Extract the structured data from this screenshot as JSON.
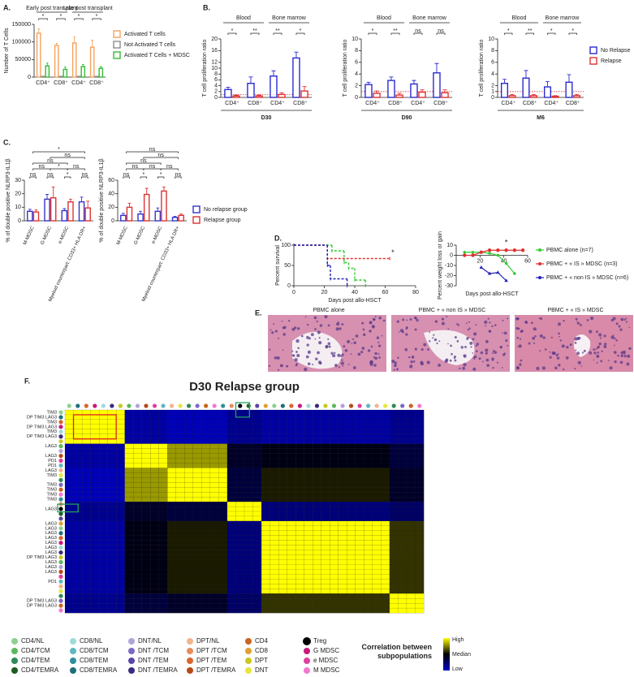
{
  "panel_labels": [
    "A.",
    "B.",
    "C.",
    "D.",
    "E.",
    "F."
  ],
  "histology": {
    "titles": [
      "PBMC alone",
      "PBMC + « non IS » MDSC",
      "PBMC + « IS » MDSC"
    ]
  },
  "chart_data": [
    {
      "type": "bar",
      "ylabel": "Number of T Cells",
      "groups": [
        "Early post transplant",
        "Late post transplant"
      ],
      "categories": [
        "CD4⁺",
        "CD8⁺",
        "CD4⁺",
        "CD8⁺"
      ],
      "series": [
        {
          "name": "Activated T cells",
          "color": "#f5a35c",
          "values": [
            125000,
            90000,
            97000,
            85000
          ],
          "errors": [
            12000,
            6000,
            18000,
            20000
          ]
        },
        {
          "name": "Not Activated T cells",
          "color": "#8c8c8c",
          "values": [
            2000,
            2000,
            2000,
            2000
          ],
          "errors": [
            500,
            500,
            500,
            500
          ]
        },
        {
          "name": "Activated T Cells + MDSC",
          "color": "#33bb33",
          "values": [
            32000,
            22000,
            30000,
            25000
          ],
          "errors": [
            8000,
            7000,
            6000,
            5000
          ]
        }
      ],
      "ylim": [
        0,
        150000
      ],
      "yticks": [
        0,
        50000,
        100000,
        150000
      ],
      "significance": [
        "*",
        "*",
        "*",
        "*"
      ],
      "legend": "right"
    },
    {
      "type": "bar",
      "ylabel": "T cell proliferation ratio",
      "xlabel": "D30",
      "groups": [
        "Blood",
        "Bone marrow"
      ],
      "categories": [
        "CD4⁺",
        "CD8⁺",
        "CD4⁺",
        "CD8⁺"
      ],
      "series": [
        {
          "color": "#2b2bd0",
          "values": [
            2.7,
            4.8,
            7.3,
            13.5
          ],
          "errors": [
            0.8,
            2.2,
            1.8,
            2
          ]
        },
        {
          "color": "#e03030",
          "values": [
            0.5,
            0.5,
            1.0,
            2.2
          ],
          "errors": [
            0.3,
            0.3,
            0.6,
            1.5
          ]
        }
      ],
      "ylim": [
        0,
        20
      ],
      "yticks": [
        0,
        2,
        4,
        6,
        8,
        10,
        12,
        16,
        20
      ],
      "hline": 1,
      "significance": [
        "*",
        "**",
        "**",
        "*"
      ]
    },
    {
      "type": "bar",
      "ylabel": "T cell proliferation ratio",
      "xlabel": "D90",
      "groups": [
        "Blood",
        "Bone marrow"
      ],
      "categories": [
        "CD4⁺",
        "CD8⁺",
        "CD4⁺",
        "CD8⁺"
      ],
      "series": [
        {
          "color": "#2b2bd0",
          "values": [
            2.2,
            2.9,
            2.3,
            4.2
          ],
          "errors": [
            0.4,
            0.6,
            0.6,
            1.6
          ]
        },
        {
          "color": "#e03030",
          "values": [
            0.7,
            0.4,
            0.9,
            0.8
          ],
          "errors": [
            0.4,
            0.3,
            0.4,
            0.5
          ]
        }
      ],
      "ylim": [
        0,
        10
      ],
      "yticks": [
        0,
        2,
        4,
        6,
        8,
        10
      ],
      "hline": 1,
      "significance": [
        "*",
        "**",
        "ns",
        "ns"
      ]
    },
    {
      "type": "bar",
      "ylabel": "T cell proliferation ratio",
      "xlabel": "M6",
      "groups": [
        "Blood",
        "Bone marrow"
      ],
      "categories": [
        "CD4⁺",
        "CD8⁺",
        "CD4⁺",
        "CD8⁺"
      ],
      "series": [
        {
          "name": "No Relapse",
          "color": "#2b2bd0",
          "values": [
            2.4,
            3.3,
            1.8,
            2.6
          ],
          "errors": [
            0.7,
            1.3,
            0.9,
            1.3
          ]
        },
        {
          "name": "Relapse",
          "color": "#e03030",
          "values": [
            0.3,
            0.3,
            0.2,
            0.3
          ],
          "errors": [
            0.2,
            0.2,
            0.1,
            0.2
          ]
        }
      ],
      "ylim": [
        0,
        10
      ],
      "yticks": [
        0,
        1,
        2,
        4,
        6,
        8,
        10
      ],
      "hline": 1,
      "significance": [
        "*",
        "**",
        "*",
        "*"
      ],
      "legend": "right"
    },
    {
      "type": "bar",
      "ylabel": "% of double positive NLRP3-IL1β",
      "categories": [
        "M-MDSC",
        "G-MDSC",
        "e-MDSC",
        "Myeloid counterpart: CD33+ HLA DR+"
      ],
      "series": [
        {
          "color": "#3333cc",
          "values": [
            7,
            16,
            7.5,
            14
          ],
          "errors": [
            1.5,
            3.5,
            1.5,
            3.5
          ]
        },
        {
          "color": "#dd3333",
          "values": [
            6.5,
            17,
            14,
            9.5
          ],
          "errors": [
            1.5,
            8,
            2,
            5
          ]
        }
      ],
      "ylim": [
        0,
        30
      ],
      "yticks": [
        0,
        10,
        20,
        30
      ],
      "significance": [
        "ns",
        "ns",
        "*",
        "ns"
      ],
      "brackets": [
        "*",
        "ns",
        "ns",
        "ns",
        "*",
        "ns"
      ]
    },
    {
      "type": "bar",
      "ylabel": "% of double positive NLRP3-IL1β",
      "categories": [
        "M-MDSC",
        "G-MDSC",
        "e-MDSC",
        "Myeloid counterpart: CD33+ HLA DR+"
      ],
      "series": [
        {
          "name": "No relapse group",
          "color": "#3333cc",
          "values": [
            8,
            10,
            14,
            5
          ],
          "errors": [
            3,
            4,
            5,
            1.5
          ]
        },
        {
          "name": "Relapse group",
          "color": "#dd3333",
          "values": [
            20,
            39,
            44,
            8
          ],
          "errors": [
            6,
            9,
            6,
            2
          ]
        }
      ],
      "ylim": [
        0,
        60
      ],
      "yticks": [
        0,
        20,
        40,
        60
      ],
      "significance": [
        "ns",
        "*",
        "*",
        "ns"
      ],
      "brackets": [
        "ns",
        "ns",
        "ns",
        "ns",
        "ns",
        "ns"
      ],
      "legend": "right"
    },
    {
      "type": "step",
      "ylabel": "Percent survival",
      "xlabel": "Days post allo-HSCT",
      "series": [
        {
          "color": "#33cc33",
          "x": [
            0,
            25,
            33,
            36,
            40,
            47
          ],
          "values": [
            100,
            86,
            57,
            43,
            14,
            0
          ]
        },
        {
          "color": "#e03030",
          "x": [
            0,
            22,
            63
          ],
          "values": [
            100,
            67,
            67
          ]
        },
        {
          "color": "#2222bb",
          "x": [
            0,
            22,
            24,
            35
          ],
          "values": [
            100,
            50,
            17,
            0
          ]
        }
      ],
      "xlim": [
        0,
        80
      ],
      "xticks": [
        0,
        20,
        40,
        60,
        80
      ],
      "ylim": [
        0,
        100
      ],
      "yticks": [
        0,
        50,
        100
      ],
      "annotation": "*"
    },
    {
      "type": "line",
      "ylabel": "Percent weight loss or gain",
      "xlabel": "Days post allo-HSCT",
      "series": [
        {
          "name": "PBMC alone (n=7)",
          "color": "#33cc33",
          "x": [
            7,
            14,
            21,
            28,
            35,
            42,
            49
          ],
          "values": [
            3,
            3,
            3,
            2,
            0,
            -8,
            -18
          ]
        },
        {
          "name": "PBMC + « IS » MDSC (n=3)",
          "color": "#e03030",
          "x": [
            7,
            14,
            21,
            28,
            35,
            42,
            49,
            56
          ],
          "values": [
            0,
            0,
            3,
            5,
            5,
            5,
            5,
            5
          ]
        },
        {
          "name": "PBMC + « non IS » MDSC (n=6)",
          "color": "#2222bb",
          "x": [
            21,
            28,
            35,
            42
          ],
          "values": [
            -12,
            -18,
            -17,
            -25
          ]
        }
      ],
      "xlim": [
        0,
        60
      ],
      "xticks": [
        20,
        40,
        60
      ],
      "ylim": [
        -30,
        10
      ],
      "yticks": [
        -30,
        -20,
        -10,
        0,
        10
      ],
      "annotation": "*",
      "legend": "right"
    },
    {
      "type": "heatmap",
      "title": "D30 Relapse group",
      "clusters": [
        [
          "TIM3",
          "DP TIM3 LAG3",
          "TIM3",
          "DP TIM3 LAG3",
          "TIM3",
          "DP TIM3 LAG3",
          null
        ],
        [
          "LAG3",
          null,
          "LAG3",
          "PD1",
          "PD1"
        ],
        [
          "LAG3",
          "TIM3",
          null,
          "TIM3",
          "TIM3",
          "TIM3",
          "TIM3"
        ],
        [
          null,
          "LAG3",
          null,
          null
        ],
        [
          "LAG3",
          "LAG3",
          "LAG3",
          "LAG3",
          "LAG3",
          "LAG3",
          "LAG3",
          "DP TIM3 LAG3",
          "LAG3",
          "LAG3",
          "LAG3",
          null,
          "PD1",
          null,
          null
        ],
        [
          null,
          "DP TIM3 LAG3",
          "DP TIM3 LAG3",
          null
        ]
      ],
      "matrix": [
        [
          1,
          -0.8,
          -0.9,
          -0.7,
          -0.8,
          -0.7
        ],
        [
          -0.8,
          1,
          0.6,
          -0.2,
          -0.1,
          -0.3
        ],
        [
          -0.9,
          0.6,
          1,
          -0.3,
          0.1,
          -0.2
        ],
        [
          -0.7,
          -0.2,
          -0.3,
          1,
          -0.6,
          -0.5
        ],
        [
          -0.8,
          -0.1,
          0.1,
          -0.6,
          1,
          0.2
        ],
        [
          -0.7,
          -0.3,
          -0.2,
          -0.5,
          0.2,
          1
        ]
      ],
      "zlim": [
        -1,
        1
      ],
      "colors": [
        "#0000cc",
        "#000000",
        "#ffff00"
      ],
      "colorscale_title": "Correlation between subpopulations",
      "colorscale_labels": [
        "High",
        "Median",
        "Low"
      ],
      "legend_items": [
        {
          "name": "CD4/NL",
          "color": "#8fd08f"
        },
        {
          "name": "CD4/TCM",
          "color": "#5cb85c"
        },
        {
          "name": "CD4/TEM",
          "color": "#2e8b57"
        },
        {
          "name": "CD4/TEMRA",
          "color": "#1b5e20"
        },
        {
          "name": "CD8/NL",
          "color": "#9fdada"
        },
        {
          "name": "CD8/TCM",
          "color": "#5fb8c0"
        },
        {
          "name": "CD8/TEM",
          "color": "#2f8f9a"
        },
        {
          "name": "CD8/TEMRA",
          "color": "#1f6f7a"
        },
        {
          "name": "DNT/NL",
          "color": "#b0a4dc"
        },
        {
          "name": "DNT /TCM",
          "color": "#7b68c6"
        },
        {
          "name": "DNT /TEM",
          "color": "#5a46a8"
        },
        {
          "name": "DNT /TEMRA",
          "color": "#3b2a80"
        },
        {
          "name": "DPT/NL",
          "color": "#f2b48a"
        },
        {
          "name": "DPT /TCM",
          "color": "#e88c5c"
        },
        {
          "name": "DPT /TEM",
          "color": "#d9652e"
        },
        {
          "name": "DPT /TEMRA",
          "color": "#b54a17"
        },
        {
          "name": "CD4",
          "color": "#c8641e"
        },
        {
          "name": "CD8",
          "color": "#e0a030"
        },
        {
          "name": "DPT",
          "color": "#c8c820"
        },
        {
          "name": "DNT",
          "color": "#e6e640"
        },
        {
          "name": "Treg",
          "color": "#000000"
        },
        {
          "name": "G MDSC",
          "color": "#c8187a"
        },
        {
          "name": "e MDSC",
          "color": "#e040a0"
        },
        {
          "name": "M MDSC",
          "color": "#f07ad0"
        }
      ]
    }
  ]
}
